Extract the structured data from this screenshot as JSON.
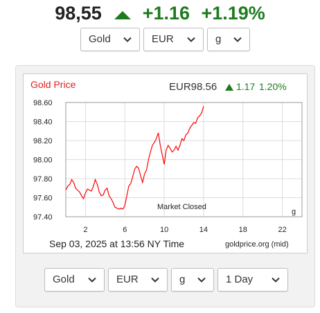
{
  "header": {
    "price": "98,55",
    "change": "+1.16",
    "change_pct": "+1.19%"
  },
  "top_selectors": {
    "metal": "Gold",
    "currency": "EUR",
    "unit": "g"
  },
  "chart_data": {
    "type": "line",
    "title": "Gold Price",
    "quote": "EUR98.56",
    "quote_change": "1.17",
    "quote_pct": "1.20%",
    "xlabel": "",
    "ylabel": "",
    "unit_label": "g",
    "annotation": "Market Closed",
    "footer_time": "Sep 03, 2025 at 13:56 NY Time",
    "source": "goldprice.org (mid)",
    "xlim": [
      0,
      24
    ],
    "ylim": [
      97.4,
      98.6
    ],
    "x_ticks": [
      2,
      6,
      10,
      14,
      18,
      22
    ],
    "y_ticks": [
      "98.60",
      "98.40",
      "98.20",
      "98.00",
      "97.80",
      "97.60",
      "97.40"
    ],
    "grid": true,
    "line_color": "#ff0000",
    "series": [
      {
        "x": [
          0,
          0.2,
          0.4,
          0.6,
          0.8,
          1.0,
          1.2,
          1.4,
          1.6,
          1.8,
          2.0,
          2.2,
          2.4,
          2.6,
          2.8,
          3.0,
          3.2,
          3.4,
          3.6,
          3.8,
          4.0,
          4.2,
          4.4,
          4.6,
          4.8,
          5.0,
          5.2,
          5.4,
          5.6,
          5.8,
          6.0,
          6.2,
          6.4,
          6.6,
          6.8,
          7.0,
          7.2,
          7.4,
          7.6,
          7.8,
          8.0,
          8.2,
          8.4,
          8.6,
          8.8,
          9.0,
          9.2,
          9.4,
          9.6,
          9.8,
          10.0,
          10.2,
          10.4,
          10.6,
          10.8,
          11.0,
          11.2,
          11.4,
          11.6,
          11.8,
          12.0,
          12.2,
          12.4,
          12.6,
          12.8,
          13.0,
          13.2,
          13.4,
          13.6,
          13.8,
          14.0
        ],
        "y": [
          97.68,
          97.72,
          97.74,
          97.79,
          97.76,
          97.7,
          97.68,
          97.66,
          97.62,
          97.59,
          97.65,
          97.69,
          97.68,
          97.67,
          97.72,
          97.79,
          97.74,
          97.66,
          97.62,
          97.63,
          97.68,
          97.7,
          97.62,
          97.59,
          97.55,
          97.5,
          97.49,
          97.48,
          97.49,
          97.48,
          97.52,
          97.62,
          97.72,
          97.75,
          97.82,
          97.9,
          97.93,
          97.91,
          97.83,
          97.76,
          97.85,
          97.89,
          98.0,
          98.08,
          98.15,
          98.18,
          98.22,
          98.28,
          98.15,
          98.05,
          97.95,
          98.1,
          98.15,
          98.12,
          98.08,
          98.1,
          98.14,
          98.1,
          98.15,
          98.22,
          98.2,
          98.26,
          98.28,
          98.33,
          98.36,
          98.39,
          98.38,
          98.44,
          98.46,
          98.49,
          98.56
        ]
      }
    ]
  },
  "bottom_selectors": {
    "metal": "Gold",
    "currency": "EUR",
    "unit": "g",
    "range": "1 Day"
  },
  "colors": {
    "up": "#1e7a1e",
    "title_red": "#e02020",
    "line": "#ff0000"
  }
}
